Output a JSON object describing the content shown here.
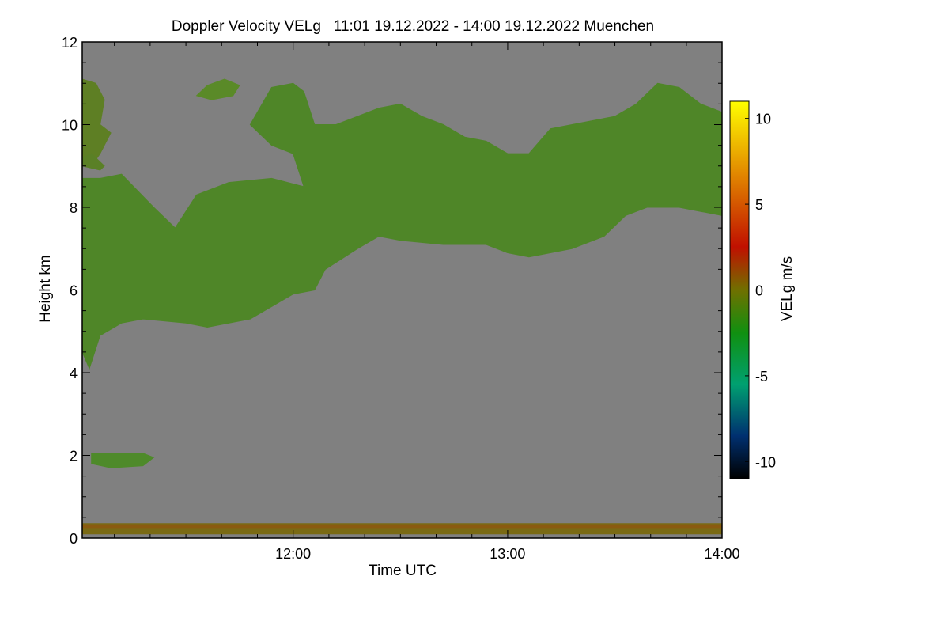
{
  "chart_data": {
    "type": "heatmap",
    "title": "Doppler Velocity VELg   11:01 19.12.2022 - 14:00 19.12.2022 Muenchen",
    "xlabel": "Time UTC",
    "ylabel": "Height km",
    "colorbar_label": "VELg m/s",
    "x_range_hours": [
      11.0167,
      14.0
    ],
    "x_ticks": [
      {
        "value": 12.0,
        "label": "12:00"
      },
      {
        "value": 13.0,
        "label": "13:00"
      },
      {
        "value": 14.0,
        "label": "14:00"
      }
    ],
    "x_minor_step_hours": 0.1667,
    "y_range_km": [
      0,
      12
    ],
    "y_ticks": [
      0,
      2,
      4,
      6,
      8,
      10,
      12
    ],
    "y_minor_step_km": 0.5,
    "colorbar_range": [
      -11,
      11
    ],
    "colorbar_ticks": [
      10,
      5,
      0,
      -5,
      -10
    ],
    "colorbar_stops": [
      {
        "value": -11,
        "color": "#000000"
      },
      {
        "value": -8.5,
        "color": "#003070"
      },
      {
        "value": -5.5,
        "color": "#00a070"
      },
      {
        "value": -2.5,
        "color": "#109010"
      },
      {
        "value": 0,
        "color": "#707000"
      },
      {
        "value": 2.5,
        "color": "#c01000"
      },
      {
        "value": 6.5,
        "color": "#e08000"
      },
      {
        "value": 11,
        "color": "#ffff00"
      }
    ],
    "background_color": "#808080",
    "cloud_layers": [
      {
        "name": "main-cloud-band",
        "velocity_ms": -1.5,
        "color": "#4f8628",
        "outline": [
          [
            11.017,
            4.5
          ],
          [
            11.05,
            4.1
          ],
          [
            11.1,
            4.9
          ],
          [
            11.2,
            5.2
          ],
          [
            11.3,
            5.3
          ],
          [
            11.5,
            5.2
          ],
          [
            11.6,
            5.1
          ],
          [
            11.8,
            5.3
          ],
          [
            11.9,
            5.6
          ],
          [
            12.0,
            5.9
          ],
          [
            12.1,
            6.0
          ],
          [
            12.15,
            6.5
          ],
          [
            12.3,
            7.0
          ],
          [
            12.4,
            7.3
          ],
          [
            12.5,
            7.2
          ],
          [
            12.7,
            7.1
          ],
          [
            12.9,
            7.1
          ],
          [
            13.0,
            6.9
          ],
          [
            13.1,
            6.8
          ],
          [
            13.3,
            7.0
          ],
          [
            13.45,
            7.3
          ],
          [
            13.55,
            7.8
          ],
          [
            13.65,
            8.0
          ],
          [
            13.8,
            8.0
          ],
          [
            13.9,
            7.9
          ],
          [
            14.0,
            7.8
          ],
          [
            14.0,
            10.3
          ],
          [
            13.9,
            10.5
          ],
          [
            13.8,
            10.9
          ],
          [
            13.7,
            11.0
          ],
          [
            13.6,
            10.5
          ],
          [
            13.5,
            10.2
          ],
          [
            13.3,
            10.0
          ],
          [
            13.2,
            9.9
          ],
          [
            13.1,
            9.3
          ],
          [
            13.0,
            9.3
          ],
          [
            12.9,
            9.6
          ],
          [
            12.8,
            9.7
          ],
          [
            12.7,
            10.0
          ],
          [
            12.6,
            10.2
          ],
          [
            12.5,
            10.5
          ],
          [
            12.4,
            10.4
          ],
          [
            12.3,
            10.2
          ],
          [
            12.2,
            10.0
          ],
          [
            12.1,
            10.0
          ],
          [
            12.05,
            10.8
          ],
          [
            12.0,
            11.0
          ],
          [
            11.9,
            10.9
          ],
          [
            11.8,
            10.0
          ],
          [
            11.9,
            9.5
          ],
          [
            12.0,
            9.3
          ],
          [
            12.05,
            8.5
          ],
          [
            11.9,
            8.7
          ],
          [
            11.7,
            8.6
          ],
          [
            11.55,
            8.3
          ],
          [
            11.45,
            7.5
          ],
          [
            11.35,
            8.0
          ],
          [
            11.2,
            8.8
          ],
          [
            11.1,
            8.7
          ],
          [
            11.017,
            8.7
          ]
        ]
      },
      {
        "name": "upper-left-cirrus",
        "velocity_ms": -0.8,
        "color": "#5e7f24",
        "outline": [
          [
            11.017,
            9.0
          ],
          [
            11.017,
            11.1
          ],
          [
            11.08,
            11.0
          ],
          [
            11.12,
            10.6
          ],
          [
            11.1,
            10.0
          ],
          [
            11.15,
            9.8
          ],
          [
            11.1,
            9.3
          ],
          [
            11.06,
            9.0
          ]
        ]
      },
      {
        "name": "left-mid-patch",
        "velocity_ms": -0.8,
        "color": "#5a8026",
        "outline": [
          [
            11.017,
            9.0
          ],
          [
            11.1,
            8.9
          ],
          [
            11.12,
            9.0
          ],
          [
            11.06,
            9.3
          ],
          [
            11.017,
            9.2
          ]
        ]
      },
      {
        "name": "top-cirrus-fragment",
        "velocity_ms": -1.0,
        "color": "#5a8a28",
        "outline": [
          [
            11.55,
            10.7
          ],
          [
            11.6,
            10.95
          ],
          [
            11.68,
            11.1
          ],
          [
            11.75,
            10.95
          ],
          [
            11.72,
            10.7
          ],
          [
            11.62,
            10.6
          ]
        ]
      },
      {
        "name": "low-cloud-2km",
        "velocity_ms": -2.0,
        "color": "#4e8a2a",
        "outline": [
          [
            11.06,
            1.8
          ],
          [
            11.06,
            2.05
          ],
          [
            11.3,
            2.05
          ],
          [
            11.35,
            1.95
          ],
          [
            11.3,
            1.75
          ],
          [
            11.15,
            1.7
          ]
        ]
      },
      {
        "name": "surface-layer",
        "velocity_ms": 0.5,
        "color": "#7a6a14",
        "outline": [
          [
            11.017,
            0.1
          ],
          [
            11.017,
            0.35
          ],
          [
            14.0,
            0.35
          ],
          [
            14.0,
            0.1
          ]
        ]
      },
      {
        "name": "ground-line",
        "velocity_ms": 1.0,
        "color": "#8a5a10",
        "outline": [
          [
            11.017,
            0.25
          ],
          [
            11.017,
            0.32
          ],
          [
            14.0,
            0.32
          ],
          [
            14.0,
            0.25
          ]
        ]
      }
    ]
  }
}
